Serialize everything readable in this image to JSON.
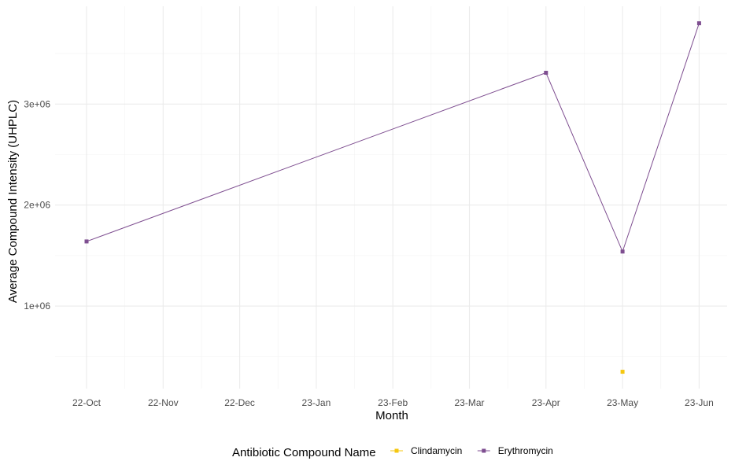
{
  "chart_data": {
    "type": "line",
    "title": "",
    "xlabel": "Month",
    "ylabel": "Average Compound Intensity (UHPLC)",
    "x_ticks": [
      "22-Oct",
      "22-Nov",
      "22-Dec",
      "23-Jan",
      "23-Feb",
      "23-Mar",
      "23-Apr",
      "23-May",
      "23-Jun"
    ],
    "y_ticks": [
      {
        "value": 1000000,
        "label": "1e+06"
      },
      {
        "value": 2000000,
        "label": "2e+06"
      },
      {
        "value": 3000000,
        "label": "3e+06"
      }
    ],
    "ylim": [
      100000,
      3950000
    ],
    "grid": true,
    "legend": {
      "title": "Antibiotic Compound Name",
      "position": "bottom"
    },
    "series": [
      {
        "name": "Clindamycin",
        "color": "#F5C710",
        "points": [
          {
            "x": "23-May",
            "y": 350000
          }
        ]
      },
      {
        "name": "Erythromycin",
        "color": "#7E4E90",
        "points": [
          {
            "x": "22-Oct",
            "y": 1640000
          },
          {
            "x": "23-Apr",
            "y": 3310000
          },
          {
            "x": "23-May",
            "y": 1540000
          },
          {
            "x": "23-Jun",
            "y": 3800000
          }
        ]
      }
    ]
  }
}
